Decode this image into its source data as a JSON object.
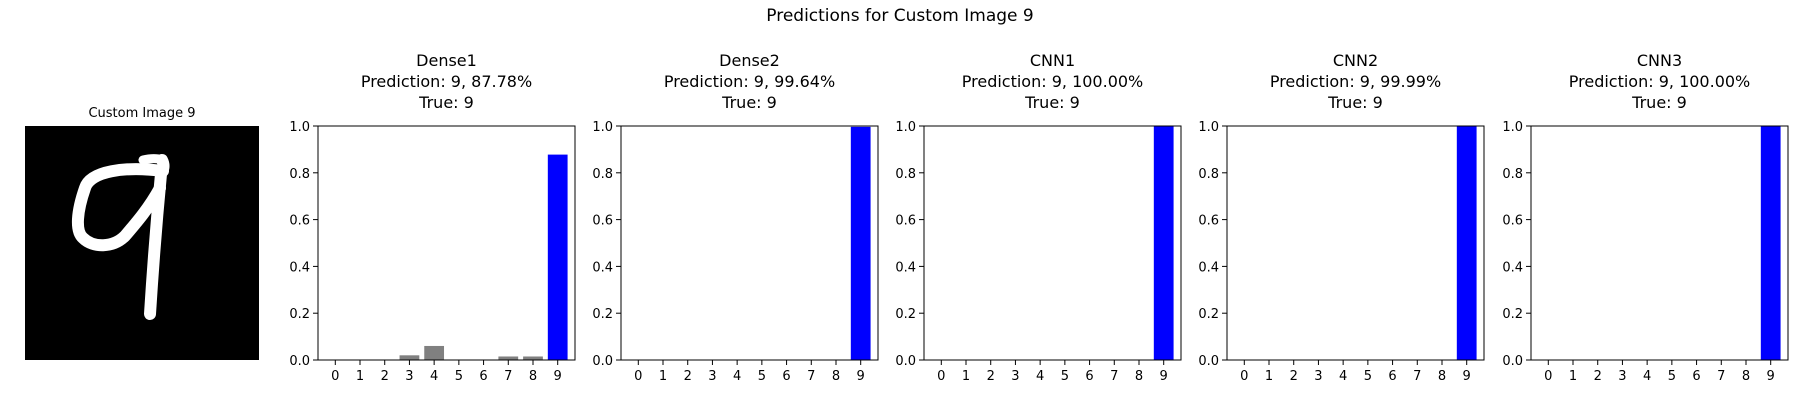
{
  "figure": {
    "suptitle": "Predictions for Custom Image 9",
    "image_title": "Custom Image 9"
  },
  "colors": {
    "predicted": "#0000ff",
    "other": "#808080",
    "image_bg": "#000000",
    "stroke": "#ffffff"
  },
  "chart_data": [
    {
      "type": "bar",
      "title": "Dense1\nPrediction: 9, 87.78%\nTrue: 9",
      "title_lines": [
        "Dense1",
        "Prediction: 9, 87.78%",
        "True: 9"
      ],
      "categories": [
        "0",
        "1",
        "2",
        "3",
        "4",
        "5",
        "6",
        "7",
        "8",
        "9"
      ],
      "values": [
        0.0,
        0.0,
        0.0,
        0.02,
        0.06,
        0.0,
        0.0,
        0.015,
        0.015,
        0.8778
      ],
      "predicted_index": 9,
      "ylim": [
        0,
        1.0
      ],
      "yticks": [
        "0.0",
        "0.2",
        "0.4",
        "0.6",
        "0.8",
        "1.0"
      ],
      "xlabel": "",
      "ylabel": "",
      "grid": false
    },
    {
      "type": "bar",
      "title": "Dense2\nPrediction: 9, 99.64%\nTrue: 9",
      "title_lines": [
        "Dense2",
        "Prediction: 9, 99.64%",
        "True: 9"
      ],
      "categories": [
        "0",
        "1",
        "2",
        "3",
        "4",
        "5",
        "6",
        "7",
        "8",
        "9"
      ],
      "values": [
        0.0,
        0.0,
        0.0,
        0.0,
        0.0,
        0.0,
        0.0,
        0.0,
        0.0,
        0.9964
      ],
      "predicted_index": 9,
      "ylim": [
        0,
        1.0
      ],
      "yticks": [
        "0.0",
        "0.2",
        "0.4",
        "0.6",
        "0.8",
        "1.0"
      ],
      "xlabel": "",
      "ylabel": "",
      "grid": false
    },
    {
      "type": "bar",
      "title": "CNN1\nPrediction: 9, 100.00%\nTrue: 9",
      "title_lines": [
        "CNN1",
        "Prediction: 9, 100.00%",
        "True: 9"
      ],
      "categories": [
        "0",
        "1",
        "2",
        "3",
        "4",
        "5",
        "6",
        "7",
        "8",
        "9"
      ],
      "values": [
        0.0,
        0.0,
        0.0,
        0.0,
        0.0,
        0.0,
        0.0,
        0.0,
        0.0,
        1.0
      ],
      "predicted_index": 9,
      "ylim": [
        0,
        1.0
      ],
      "yticks": [
        "0.0",
        "0.2",
        "0.4",
        "0.6",
        "0.8",
        "1.0"
      ],
      "xlabel": "",
      "ylabel": "",
      "grid": false
    },
    {
      "type": "bar",
      "title": "CNN2\nPrediction: 9, 99.99%\nTrue: 9",
      "title_lines": [
        "CNN2",
        "Prediction: 9, 99.99%",
        "True: 9"
      ],
      "categories": [
        "0",
        "1",
        "2",
        "3",
        "4",
        "5",
        "6",
        "7",
        "8",
        "9"
      ],
      "values": [
        0.0,
        0.0,
        0.0,
        0.0,
        0.0,
        0.0,
        0.0,
        0.0,
        0.0,
        0.9999
      ],
      "predicted_index": 9,
      "ylim": [
        0,
        1.0
      ],
      "yticks": [
        "0.0",
        "0.2",
        "0.4",
        "0.6",
        "0.8",
        "1.0"
      ],
      "xlabel": "",
      "ylabel": "",
      "grid": false
    },
    {
      "type": "bar",
      "title": "CNN3\nPrediction: 9, 100.00%\nTrue: 9",
      "title_lines": [
        "CNN3",
        "Prediction: 9, 100.00%",
        "True: 9"
      ],
      "categories": [
        "0",
        "1",
        "2",
        "3",
        "4",
        "5",
        "6",
        "7",
        "8",
        "9"
      ],
      "values": [
        0.0,
        0.0,
        0.0,
        0.0,
        0.0,
        0.0,
        0.0,
        0.0,
        0.0,
        1.0
      ],
      "predicted_index": 9,
      "ylim": [
        0,
        1.0
      ],
      "yticks": [
        "0.0",
        "0.2",
        "0.4",
        "0.6",
        "0.8",
        "1.0"
      ],
      "xlabel": "",
      "ylabel": "",
      "grid": false
    }
  ]
}
